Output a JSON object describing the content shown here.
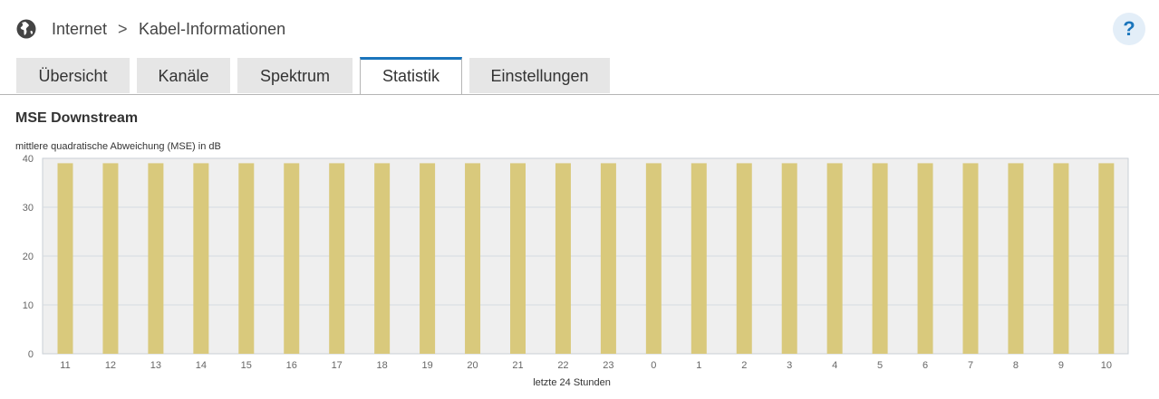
{
  "breadcrumb": {
    "item1": "Internet",
    "separator": ">",
    "item2": "Kabel-Informationen"
  },
  "help": {
    "label": "?"
  },
  "tabs": [
    {
      "label": "Übersicht",
      "active": false
    },
    {
      "label": "Kanäle",
      "active": false
    },
    {
      "label": "Spektrum",
      "active": false
    },
    {
      "label": "Statistik",
      "active": true
    },
    {
      "label": "Einstellungen",
      "active": false
    }
  ],
  "section": {
    "title": "MSE Downstream"
  },
  "colors": {
    "bar": "#d9c97c",
    "plot_bg": "#efefef",
    "accent": "#1a75bc"
  },
  "chart_data": {
    "type": "bar",
    "ylabel": "mittlere quadratische Abweichung (MSE) in dB",
    "xlabel": "letzte 24 Stunden",
    "ylim": [
      0,
      40
    ],
    "yticks": [
      0,
      10,
      20,
      30,
      40
    ],
    "grid": true,
    "categories": [
      "11",
      "12",
      "13",
      "14",
      "15",
      "16",
      "17",
      "18",
      "19",
      "20",
      "21",
      "22",
      "23",
      "0",
      "1",
      "2",
      "3",
      "4",
      "5",
      "6",
      "7",
      "8",
      "9",
      "10"
    ],
    "values": [
      39,
      39,
      39,
      39,
      39,
      39,
      39,
      39,
      39,
      39,
      39,
      39,
      39,
      39,
      39,
      39,
      39,
      39,
      39,
      39,
      39,
      39,
      39,
      39
    ]
  }
}
